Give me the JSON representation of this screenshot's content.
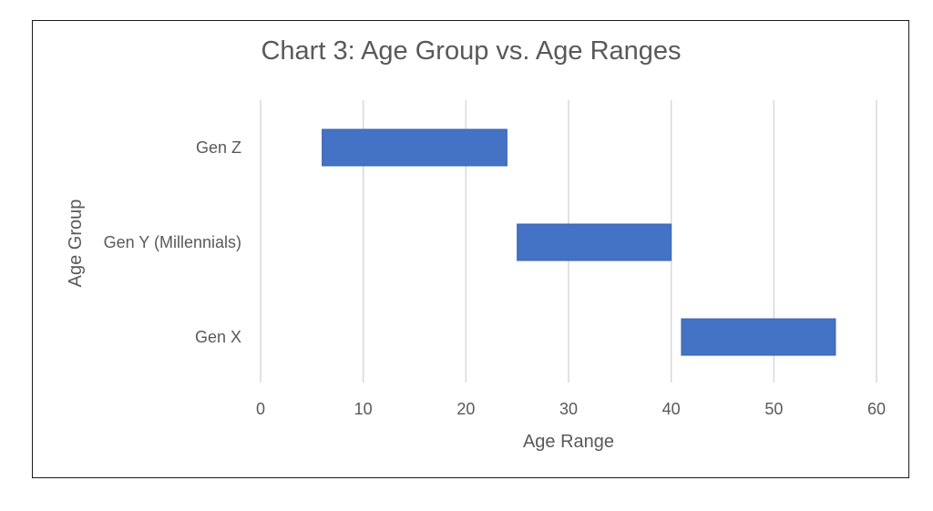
{
  "chart_data": {
    "type": "bar",
    "orientation": "horizontal",
    "style": "floating-range",
    "title": "Chart 3: Age Group vs. Age Ranges",
    "xlabel": "Age Range",
    "ylabel": "Age Group",
    "xlim": [
      0,
      60
    ],
    "xticks": [
      0,
      10,
      20,
      30,
      40,
      50,
      60
    ],
    "categories": [
      "Gen Z",
      "Gen Y (Millennials)",
      "Gen X"
    ],
    "ranges": [
      {
        "label": "Gen Z",
        "start": 6,
        "end": 24
      },
      {
        "label": "Gen Y (Millennials)",
        "start": 25,
        "end": 40
      },
      {
        "label": "Gen X",
        "start": 41,
        "end": 56
      }
    ],
    "grid": "vertical",
    "legend": "none",
    "colors": {
      "bar": "#4472C4",
      "grid": "#D9D9D9",
      "text": "#595959"
    }
  }
}
